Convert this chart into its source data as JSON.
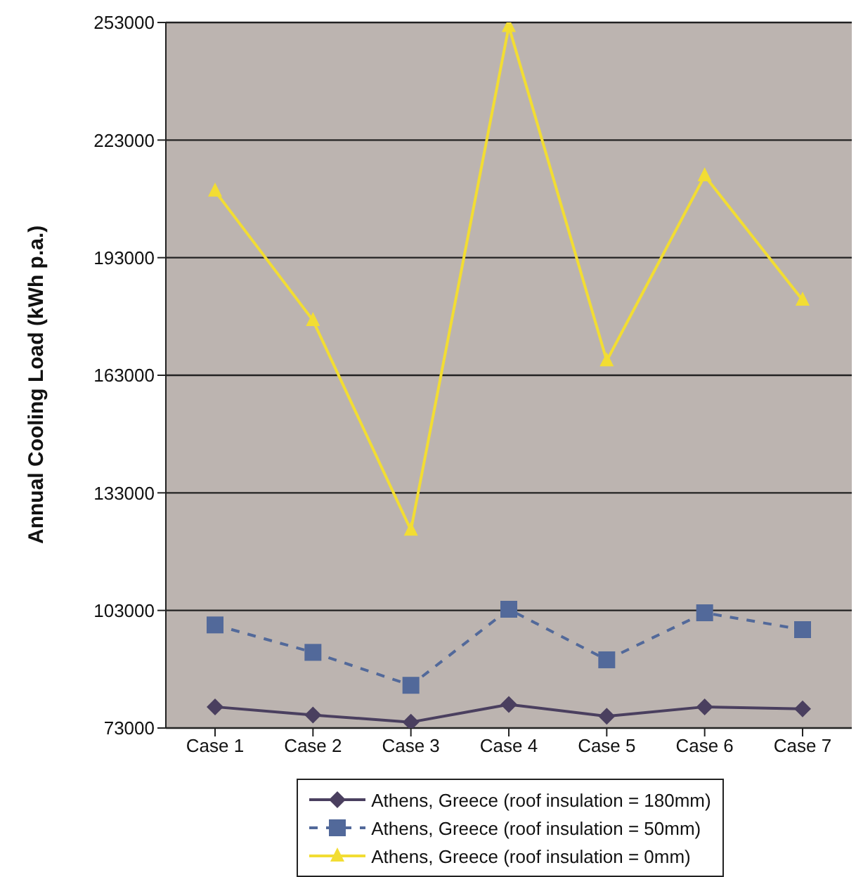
{
  "chart_data": {
    "type": "line",
    "ylabel": "Annual Cooling Load (kWh p.a.)",
    "categories": [
      "Case 1",
      "Case 2",
      "Case 3",
      "Case 4",
      "Case 5",
      "Case 6",
      "Case 7"
    ],
    "series": [
      {
        "name": "Athens, Greece (roof insulation = 180mm)",
        "color": "#4a3f5f",
        "marker": "diamond",
        "line_style": "solid",
        "values": [
          78400,
          76300,
          74500,
          79000,
          76000,
          78400,
          77900
        ]
      },
      {
        "name": "Athens, Greece (roof insulation = 50mm)",
        "color": "#52699a",
        "marker": "square",
        "line_style": "dashed",
        "values": [
          99300,
          92300,
          83900,
          103300,
          90400,
          102400,
          98100
        ]
      },
      {
        "name": "Athens, Greece (roof insulation = 0mm)",
        "color": "#f2dd33",
        "marker": "triangle",
        "line_style": "solid",
        "values": [
          210000,
          177000,
          123500,
          252000,
          166700,
          213900,
          182200
        ]
      }
    ],
    "ylim": [
      73000,
      253000
    ],
    "yticks": [
      73000,
      103000,
      133000,
      163000,
      193000,
      223000,
      253000
    ],
    "grid": "y",
    "legend": "bottom"
  }
}
